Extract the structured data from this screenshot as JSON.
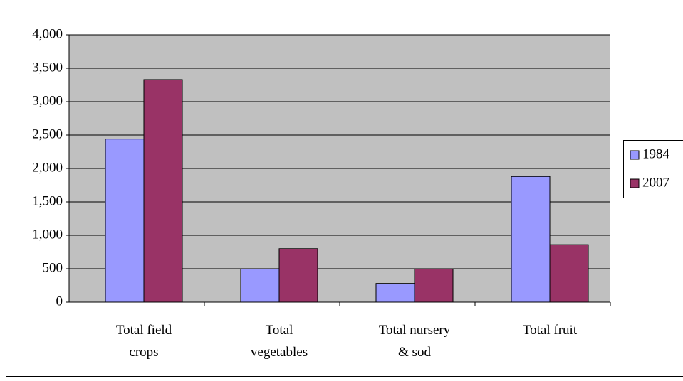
{
  "chart_data": {
    "type": "bar",
    "categories": [
      "Total field\ncrops",
      "Total\nvegetables",
      "Total nursery\n& sod",
      "Total fruit"
    ],
    "series": [
      {
        "name": "1984",
        "color": "#9999ff",
        "values": [
          2440,
          500,
          280,
          1880
        ]
      },
      {
        "name": "2007",
        "color": "#993366",
        "values": [
          3330,
          800,
          500,
          860
        ]
      }
    ],
    "ylim": [
      0,
      4000
    ],
    "yticks": [
      0,
      500,
      {
        "value": 1000,
        "label": "1,000"
      },
      {
        "value": 1500,
        "label": "1,500"
      },
      {
        "value": 2000,
        "label": "2,000"
      },
      {
        "value": 2500,
        "label": "2,500"
      },
      {
        "value": 3000,
        "label": "3,000"
      },
      {
        "value": 3500,
        "label": "3,500"
      },
      {
        "value": 4000,
        "label": "4,000"
      }
    ],
    "grid": true,
    "plot_background": "#c0c0c0",
    "legend": "right"
  }
}
